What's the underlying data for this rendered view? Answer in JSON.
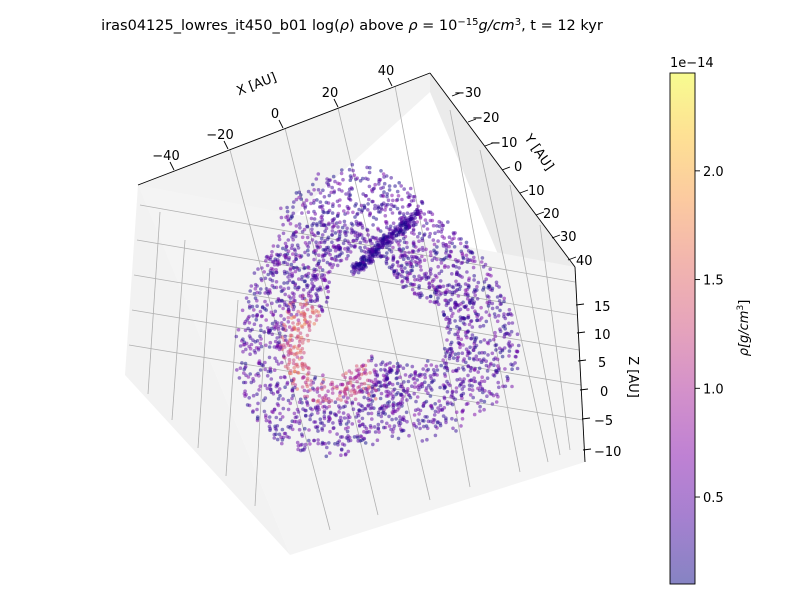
{
  "chart_data": {
    "type": "scatter",
    "title": {
      "prefix": "iras04125_lowres_it450_b01 log(",
      "rho": "ρ",
      "mid": ") above ",
      "rho2": "ρ",
      "eq": " = 10",
      "exp": "−15",
      "unit": "g/cm",
      "unit_exp": "3",
      "suffix": ", t = 12 kyr"
    },
    "axes": {
      "x": {
        "label": "X [AU]",
        "ticks": [
          "−40",
          "−20",
          "0",
          "20",
          "40"
        ],
        "range": [
          -50,
          50
        ]
      },
      "y": {
        "label": "Y [AU]",
        "ticks": [
          "−30",
          "−20",
          "−10",
          "0",
          "10",
          "20",
          "30",
          "40"
        ],
        "range": [
          -35,
          42
        ]
      },
      "z": {
        "label": "Z [AU]",
        "ticks": [
          "15",
          "10",
          "5",
          "0",
          "−5",
          "−10"
        ],
        "range": [
          -12,
          18
        ]
      }
    },
    "series": [
      {
        "shape": "ring",
        "center_x": 0,
        "center_y": 0,
        "inner_radius": 10,
        "outer_radius": 30,
        "z_range": [
          -10,
          15
        ],
        "density_range": [
          1e-15,
          2.4e-14
        ]
      }
    ],
    "colorbar": {
      "label_prefix": "ρ[g/cm",
      "label_exp": "3",
      "label_suffix": "]",
      "offset": "1e−14",
      "ticks": [
        {
          "value": 0.5,
          "label": "0.5"
        },
        {
          "value": 1.0,
          "label": "1.0"
        },
        {
          "value": 1.5,
          "label": "1.5"
        },
        {
          "value": 2.0,
          "label": "2.0"
        }
      ],
      "range": [
        0.1,
        2.45
      ],
      "colormap": "plasma",
      "alpha": 0.5
    },
    "grid": true
  }
}
